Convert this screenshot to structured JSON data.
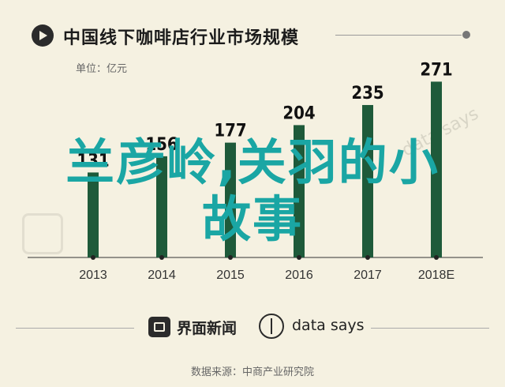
{
  "header": {
    "title": "中国线下咖啡店行业市场规模"
  },
  "unit": "单位：亿元",
  "overlay": {
    "line1": "兰彦岭,关羽的小",
    "line2": "故事"
  },
  "watermark": {
    "text": "data says"
  },
  "footer": {
    "brand1": "界面新闻",
    "brand2": "data says",
    "source": "数据来源：中商产业研究院"
  },
  "colors": {
    "bar": "#1e5a3a",
    "background": "#f5f1e1",
    "overlay_text": "#1aa6a4"
  },
  "chart_data": {
    "type": "bar",
    "categories": [
      "2013",
      "2014",
      "2015",
      "2016",
      "2017",
      "2018E"
    ],
    "values": [
      131,
      156,
      177,
      204,
      235,
      271
    ],
    "value_labels": [
      "131",
      "156",
      "177",
      "204",
      "235",
      "271"
    ],
    "title": "中国线下咖啡店行业市场规模",
    "ylabel": "单位：亿元",
    "ylim": [
      0,
      280
    ],
    "grid": false,
    "legend": "none"
  }
}
